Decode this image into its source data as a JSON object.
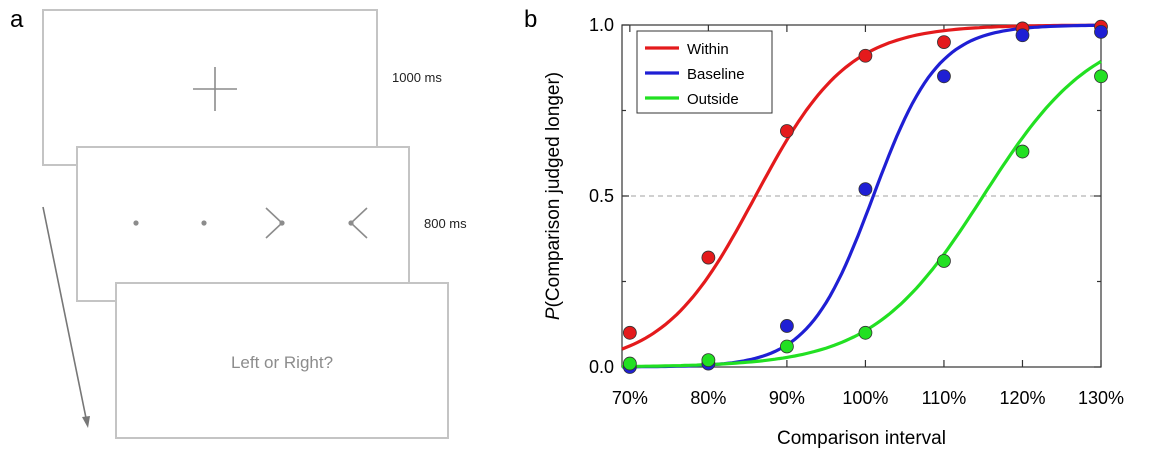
{
  "panel_a": {
    "letter": "a",
    "screens": [
      {
        "timing": "1000 ms"
      },
      {
        "timing": "800 ms"
      },
      {
        "prompt": "Left or Right?"
      }
    ]
  },
  "panel_b": {
    "letter": "b"
  },
  "chart_data": {
    "type": "scatter",
    "xlabel": "Comparison interval",
    "ylabel_italic": "P",
    "ylabel_rest": "(Comparison judged longer)",
    "x": [
      70,
      80,
      90,
      100,
      110,
      120,
      130
    ],
    "x_tick_labels": [
      "70%",
      "80%",
      "90%",
      "100%",
      "110%",
      "120%",
      "130%"
    ],
    "xlim": [
      69,
      130
    ],
    "y_ticks": [
      0.0,
      0.5,
      1.0
    ],
    "y_tick_labels": [
      "0.0",
      "0.5",
      "1.0"
    ],
    "ylim": [
      0,
      1
    ],
    "reference_line": 0.5,
    "legend_placement": "top-left",
    "series": [
      {
        "name": "Within",
        "color": "#e41a1c",
        "values": [
          0.1,
          0.32,
          0.69,
          0.91,
          0.95,
          0.99,
          0.995
        ],
        "fit_pse": 86,
        "fit_sigma": 10
      },
      {
        "name": "Baseline",
        "color": "#1f1fd4",
        "values": [
          0.0,
          0.01,
          0.12,
          0.52,
          0.85,
          0.97,
          0.98
        ],
        "fit_pse": 101,
        "fit_sigma": 7
      },
      {
        "name": "Outside",
        "color": "#22e022",
        "values": [
          0.01,
          0.02,
          0.06,
          0.1,
          0.31,
          0.63,
          0.85
        ],
        "fit_pse": 115,
        "fit_sigma": 12
      }
    ]
  }
}
